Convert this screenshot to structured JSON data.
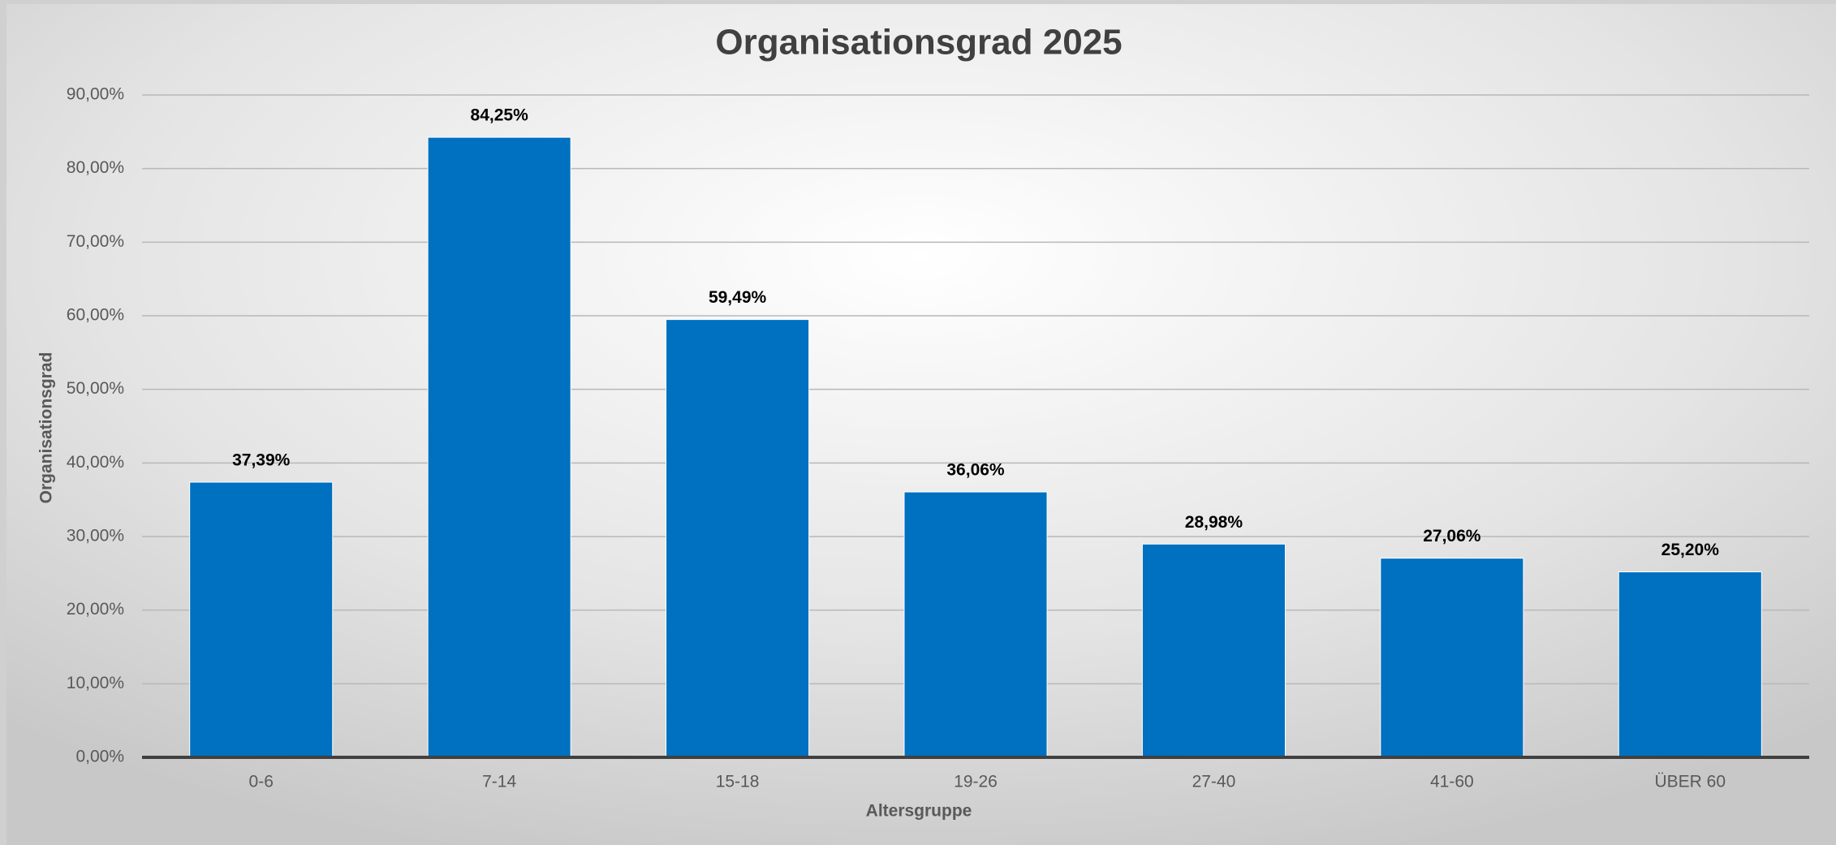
{
  "chart_data": {
    "type": "bar",
    "title": "Organisationsgrad 2025",
    "x_label": "Altersgruppe",
    "y_label": "Organisationsgrad",
    "categories": [
      "0-6",
      "7-14",
      "15-18",
      "19-26",
      "27-40",
      "41-60",
      "ÜBER 60"
    ],
    "values": [
      37.39,
      84.25,
      59.49,
      36.06,
      28.98,
      27.06,
      25.2
    ],
    "value_labels": [
      "37,39%",
      "84,25%",
      "59,49%",
      "36,06%",
      "28,98%",
      "27,06%",
      "25,20%"
    ],
    "color": "#0070c0",
    "ylim": [
      0,
      90
    ],
    "yticks": [
      {
        "value": 0,
        "label": "0,00%"
      },
      {
        "value": 10,
        "label": "10,00%"
      },
      {
        "value": 20,
        "label": "20,00%"
      },
      {
        "value": 30,
        "label": "30,00%"
      },
      {
        "value": 40,
        "label": "40,00%"
      },
      {
        "value": 50,
        "label": "50,00%"
      },
      {
        "value": 60,
        "label": "60,00%"
      },
      {
        "value": 70,
        "label": "70,00%"
      },
      {
        "value": 80,
        "label": "80,00%"
      },
      {
        "value": 90,
        "label": "90,00%"
      }
    ],
    "grid": true
  }
}
